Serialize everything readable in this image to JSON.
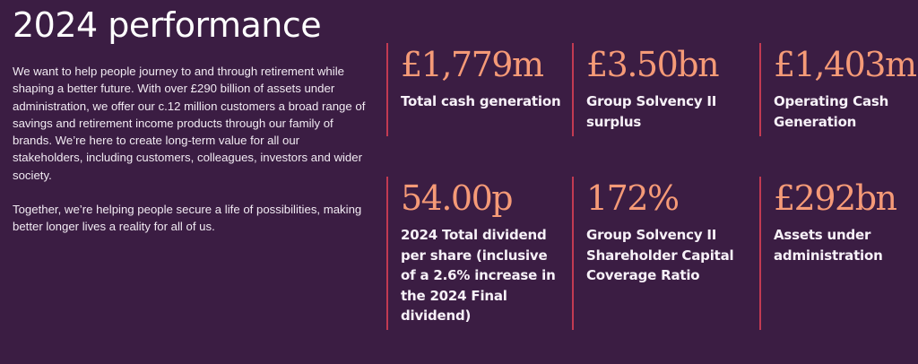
{
  "header": {
    "title": "2024 performance"
  },
  "intro": {
    "paragraphs": [
      "We want to help people journey to and through retirement while shaping a better future. With over £290 billion of assets under administration, we offer our c.12 million customers a broad range of savings and retirement income products through our family of brands. We’re here to create long-term value for all our stakeholders, including customers, colleagues, investors and wider society.",
      "Together, we’re helping people secure a life of possibilities, making better longer lives a reality for all of us."
    ]
  },
  "stats": [
    {
      "value": "£1,779m",
      "label": "Total cash generation"
    },
    {
      "value": "£3.50bn",
      "label": "Group Solvency II surplus"
    },
    {
      "value": "£1,403m",
      "label": "Operating Cash Generation"
    },
    {
      "value": "54.00p",
      "label": "2024 Total dividend per share (inclusive of a 2.6% increase in the 2024 Final dividend)"
    },
    {
      "value": "172%",
      "label": "Group Solvency II Shareholder Capital Coverage Ratio"
    },
    {
      "value": "£292bn",
      "label": "Assets under administration"
    }
  ],
  "colors": {
    "background": "#3b1d43",
    "accent_value": "#f59a77",
    "divider": "#c23a52",
    "text": "#ffffff"
  }
}
